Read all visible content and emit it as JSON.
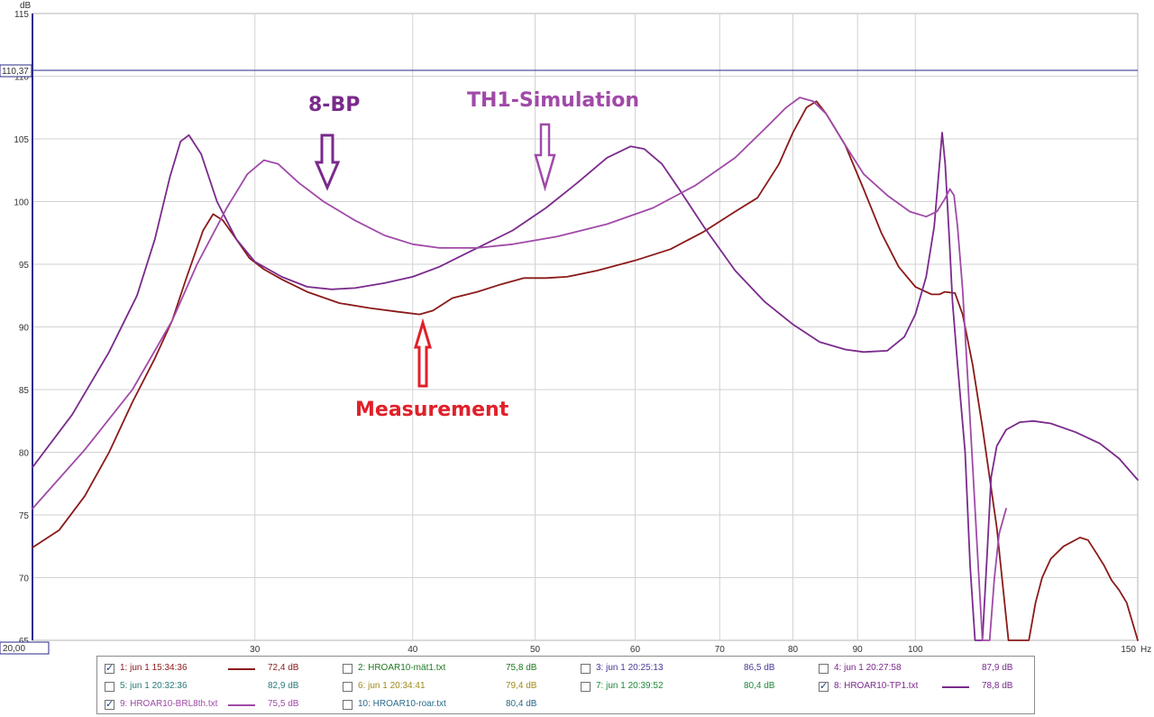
{
  "chart_data": {
    "type": "line",
    "xscale": "log",
    "xlim": [
      20,
      150
    ],
    "ylim": [
      65,
      115
    ],
    "ylabel": "dB",
    "xunit": "Hz",
    "grid": true,
    "x_tick_labels": [
      "20,00",
      "30",
      "40",
      "50",
      "60",
      "70",
      "80",
      "90",
      "100",
      "150"
    ],
    "y_tick_labels": [
      "65",
      "70",
      "75",
      "80",
      "85",
      "90",
      "95",
      "100",
      "105",
      "110",
      "115"
    ],
    "cursor_value": "110,37",
    "series": [
      {
        "name": "1: jun 1 15:34:36",
        "color": "#8b1a1a",
        "points": [
          [
            20,
            72.4
          ],
          [
            21,
            73.8
          ],
          [
            22,
            76.5
          ],
          [
            23,
            80
          ],
          [
            24,
            84
          ],
          [
            25,
            87.5
          ],
          [
            25.8,
            90.5
          ],
          [
            26.5,
            94
          ],
          [
            27.3,
            97.7
          ],
          [
            27.8,
            99
          ],
          [
            28.3,
            98.5
          ],
          [
            29,
            97
          ],
          [
            29.7,
            95.5
          ],
          [
            30.5,
            94.6
          ],
          [
            31.5,
            93.8
          ],
          [
            33,
            92.8
          ],
          [
            35,
            91.9
          ],
          [
            37,
            91.5
          ],
          [
            39,
            91.2
          ],
          [
            40.5,
            91
          ],
          [
            41.5,
            91.3
          ],
          [
            43,
            92.3
          ],
          [
            45,
            92.8
          ],
          [
            47,
            93.4
          ],
          [
            49,
            93.9
          ],
          [
            51,
            93.9
          ],
          [
            53,
            94
          ],
          [
            56,
            94.5
          ],
          [
            60,
            95.3
          ],
          [
            64,
            96.2
          ],
          [
            68,
            97.6
          ],
          [
            72,
            99.2
          ],
          [
            75,
            100.3
          ],
          [
            78,
            103
          ],
          [
            80,
            105.5
          ],
          [
            82,
            107.5
          ],
          [
            83.5,
            108
          ],
          [
            85,
            107
          ],
          [
            88,
            104.5
          ],
          [
            91,
            101
          ],
          [
            94,
            97.5
          ],
          [
            97,
            94.8
          ],
          [
            100,
            93.2
          ],
          [
            103,
            92.6
          ],
          [
            104.5,
            92.6
          ],
          [
            105.5,
            92.8
          ],
          [
            107.5,
            92.7
          ],
          [
            109,
            91
          ],
          [
            111,
            87
          ],
          [
            113,
            82
          ],
          [
            116,
            74
          ],
          [
            118.5,
            65
          ],
          [
            123,
            65
          ],
          [
            124.5,
            68
          ],
          [
            126,
            70
          ],
          [
            128,
            71.5
          ],
          [
            131,
            72.5
          ],
          [
            135,
            73.2
          ],
          [
            137,
            73
          ],
          [
            139,
            72
          ],
          [
            141,
            71
          ],
          [
            143,
            69.8
          ],
          [
            145,
            69
          ],
          [
            147,
            68
          ],
          [
            150,
            65
          ]
        ]
      },
      {
        "name": "8: HROAR10-TP1.txt",
        "color": "#7a2a8c",
        "points": [
          [
            20,
            78.8
          ],
          [
            21.5,
            83
          ],
          [
            23,
            88
          ],
          [
            24.2,
            92.5
          ],
          [
            25,
            97
          ],
          [
            25.7,
            102
          ],
          [
            26.2,
            104.8
          ],
          [
            26.6,
            105.3
          ],
          [
            27.2,
            103.8
          ],
          [
            28,
            100
          ],
          [
            29,
            97
          ],
          [
            30,
            95.2
          ],
          [
            31.5,
            94
          ],
          [
            33,
            93.2
          ],
          [
            34.5,
            93
          ],
          [
            36,
            93.1
          ],
          [
            38,
            93.5
          ],
          [
            40,
            94
          ],
          [
            42,
            94.8
          ],
          [
            45,
            96.3
          ],
          [
            48,
            97.7
          ],
          [
            51,
            99.5
          ],
          [
            54,
            101.5
          ],
          [
            57,
            103.5
          ],
          [
            59.5,
            104.4
          ],
          [
            61,
            104.2
          ],
          [
            63,
            103
          ],
          [
            65,
            101
          ],
          [
            68,
            98
          ],
          [
            72,
            94.5
          ],
          [
            76,
            92
          ],
          [
            80,
            90.2
          ],
          [
            84,
            88.8
          ],
          [
            88,
            88.2
          ],
          [
            91,
            88
          ],
          [
            95,
            88.1
          ],
          [
            98,
            89.2
          ],
          [
            100,
            91
          ],
          [
            102,
            94
          ],
          [
            103.5,
            98
          ],
          [
            104.5,
            103
          ],
          [
            105,
            105.5
          ],
          [
            105.6,
            103
          ],
          [
            106.4,
            97
          ],
          [
            107,
            92
          ],
          [
            108,
            87
          ],
          [
            109.5,
            80
          ],
          [
            110.5,
            71
          ],
          [
            111.5,
            65
          ],
          [
            113,
            65
          ],
          [
            114,
            72
          ],
          [
            114.8,
            78
          ],
          [
            116,
            80.5
          ],
          [
            118,
            81.8
          ],
          [
            121,
            82.4
          ],
          [
            124,
            82.5
          ],
          [
            128,
            82.3
          ],
          [
            134,
            81.6
          ],
          [
            140,
            80.7
          ],
          [
            145,
            79.5
          ],
          [
            150,
            77.8
          ]
        ]
      },
      {
        "name": "9: HROAR10-BRL8th.txt",
        "color": "#a04aa8",
        "points": [
          [
            20,
            75.5
          ],
          [
            22,
            80.2
          ],
          [
            24,
            85
          ],
          [
            25.8,
            90.5
          ],
          [
            27,
            95
          ],
          [
            28.5,
            99.5
          ],
          [
            29.6,
            102.2
          ],
          [
            30.5,
            103.3
          ],
          [
            31.3,
            103
          ],
          [
            32.5,
            101.5
          ],
          [
            34,
            100
          ],
          [
            36,
            98.5
          ],
          [
            38,
            97.3
          ],
          [
            40,
            96.6
          ],
          [
            42,
            96.3
          ],
          [
            45,
            96.3
          ],
          [
            48,
            96.6
          ],
          [
            52,
            97.2
          ],
          [
            57,
            98.2
          ],
          [
            62,
            99.5
          ],
          [
            67,
            101.3
          ],
          [
            72,
            103.5
          ],
          [
            76,
            105.8
          ],
          [
            79,
            107.5
          ],
          [
            81,
            108.3
          ],
          [
            83,
            108
          ],
          [
            85,
            107
          ],
          [
            88,
            104.5
          ],
          [
            91,
            102.2
          ],
          [
            95,
            100.5
          ],
          [
            99,
            99.2
          ],
          [
            102,
            98.8
          ],
          [
            104,
            99.2
          ],
          [
            105.5,
            100.2
          ],
          [
            106.5,
            101
          ],
          [
            107.3,
            100.5
          ],
          [
            108,
            98
          ],
          [
            109,
            93
          ],
          [
            110,
            86
          ],
          [
            111,
            79
          ],
          [
            112,
            72
          ],
          [
            113,
            65
          ],
          [
            114.5,
            65
          ],
          [
            115.5,
            70
          ],
          [
            116.5,
            73.5
          ],
          [
            118,
            75.5
          ]
        ]
      }
    ],
    "annotations": [
      {
        "text": "8-BP",
        "color": "#7a2a8c"
      },
      {
        "text": "TH1-Simulation",
        "color": "#a04aa8"
      },
      {
        "text": "Measurement",
        "color": "#e0202a"
      }
    ]
  },
  "legend": [
    {
      "label": "1: jun 1 15:34:36",
      "value": "72,4 dB",
      "checked": true,
      "color": "#8b1a1a",
      "text_color": "#8b1a1a",
      "show_line": true
    },
    {
      "label": "2: HROAR10-mät1.txt",
      "value": "75,8 dB",
      "checked": false,
      "color": "#1f7a1f",
      "text_color": "#1f7a1f",
      "show_line": false
    },
    {
      "label": "3: jun 1 20:25:13",
      "value": "86,5 dB",
      "checked": false,
      "color": "#4a3a9a",
      "text_color": "#4a3a9a",
      "show_line": false
    },
    {
      "label": "4: jun 1 20:27:58",
      "value": "87,9 dB",
      "checked": false,
      "color": "#7a2a8c",
      "text_color": "#7a2a8c",
      "show_line": false
    },
    {
      "label": "5: jun 1 20:32:36",
      "value": "82,9 dB",
      "checked": false,
      "color": "#2a7a7a",
      "text_color": "#2a7a7a",
      "show_line": false
    },
    {
      "label": "6: jun 1 20:34:41",
      "value": "79,4 dB",
      "checked": false,
      "color": "#a08a1a",
      "text_color": "#a08a1a",
      "show_line": false
    },
    {
      "label": "7: jun 1 20:39:52",
      "value": "80,4 dB",
      "checked": false,
      "color": "#1f8a3a",
      "text_color": "#1f8a3a",
      "show_line": false
    },
    {
      "label": "8: HROAR10-TP1.txt",
      "value": "78,8 dB",
      "checked": true,
      "color": "#7a2a8c",
      "text_color": "#7a2a8c",
      "show_line": true
    },
    {
      "label": "9: HROAR10-BRL8th.txt",
      "value": "75,5 dB",
      "checked": true,
      "color": "#a04aa8",
      "text_color": "#a04aa8",
      "show_line": true
    },
    {
      "label": "10: HROAR10-roar.txt",
      "value": "80,4 dB",
      "checked": false,
      "color": "#2a6a8a",
      "text_color": "#2a6a8a",
      "show_line": false
    }
  ]
}
